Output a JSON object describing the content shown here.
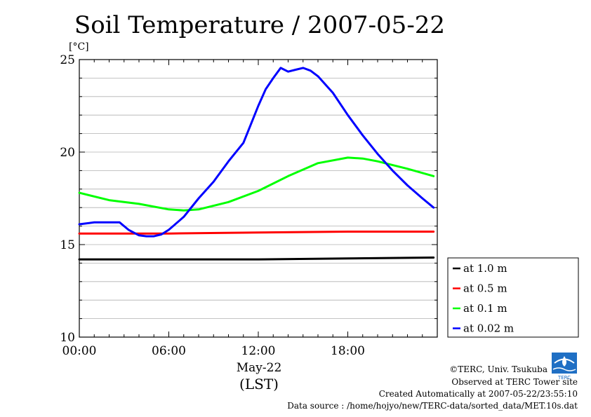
{
  "chart_data": {
    "type": "line",
    "title": "Soil Temperature / 2007-05-22",
    "ylabel": "[°C]",
    "xlabel_date": "May-22",
    "xlabel_tz": "(LST)",
    "ylim": [
      10,
      25
    ],
    "xlim": [
      0,
      24
    ],
    "yticks": [
      10,
      15,
      20,
      25
    ],
    "xticks": [
      0,
      6,
      12,
      18
    ],
    "xtick_labels": [
      "00:00",
      "06:00",
      "12:00",
      "18:00"
    ],
    "grid": true,
    "legend_position": "right",
    "series": [
      {
        "name": "at 1.0 m",
        "color": "#000000",
        "x": [
          0,
          6,
          12,
          18,
          23.75
        ],
        "y": [
          14.2,
          14.2,
          14.2,
          14.25,
          14.3
        ]
      },
      {
        "name": "at 0.5 m",
        "color": "#ff0000",
        "x": [
          0,
          6,
          12,
          18,
          23.75
        ],
        "y": [
          15.6,
          15.6,
          15.65,
          15.7,
          15.7
        ]
      },
      {
        "name": "at 0.1 m",
        "color": "#00ff00",
        "x": [
          0,
          2,
          4,
          6,
          7,
          8,
          10,
          12,
          14,
          16,
          18,
          19,
          20,
          22,
          23.75
        ],
        "y": [
          17.8,
          17.4,
          17.2,
          16.9,
          16.85,
          16.9,
          17.3,
          17.9,
          18.7,
          19.4,
          19.7,
          19.65,
          19.5,
          19.1,
          18.7
        ]
      },
      {
        "name": "at 0.02 m",
        "color": "#0000ff",
        "x": [
          0,
          1,
          2,
          2.7,
          3.3,
          4,
          4.5,
          5,
          5.5,
          6,
          7,
          8,
          9,
          10,
          11,
          11.5,
          12,
          12.5,
          13,
          13.5,
          14,
          14.5,
          15,
          15.5,
          16,
          17,
          18,
          19,
          20,
          21,
          22,
          23,
          23.75
        ],
        "y": [
          16.1,
          16.2,
          16.2,
          16.2,
          15.8,
          15.5,
          15.45,
          15.45,
          15.55,
          15.8,
          16.5,
          17.5,
          18.4,
          19.5,
          20.5,
          21.5,
          22.5,
          23.4,
          24.0,
          24.55,
          24.35,
          24.45,
          24.55,
          24.4,
          24.1,
          23.2,
          22.0,
          20.9,
          19.9,
          19.0,
          18.2,
          17.5,
          17.0
        ]
      }
    ]
  },
  "footer": {
    "copyright": "©TERC, Univ. Tsukuba",
    "observed": "Observed at TERC Tower site",
    "created": "Created Automatically at 2007-05-22/23:55:10",
    "source": "Data source : /home/hojyo/new/TERC-data/sorted_data/MET.10s.dat",
    "logo_text": "TERC"
  }
}
